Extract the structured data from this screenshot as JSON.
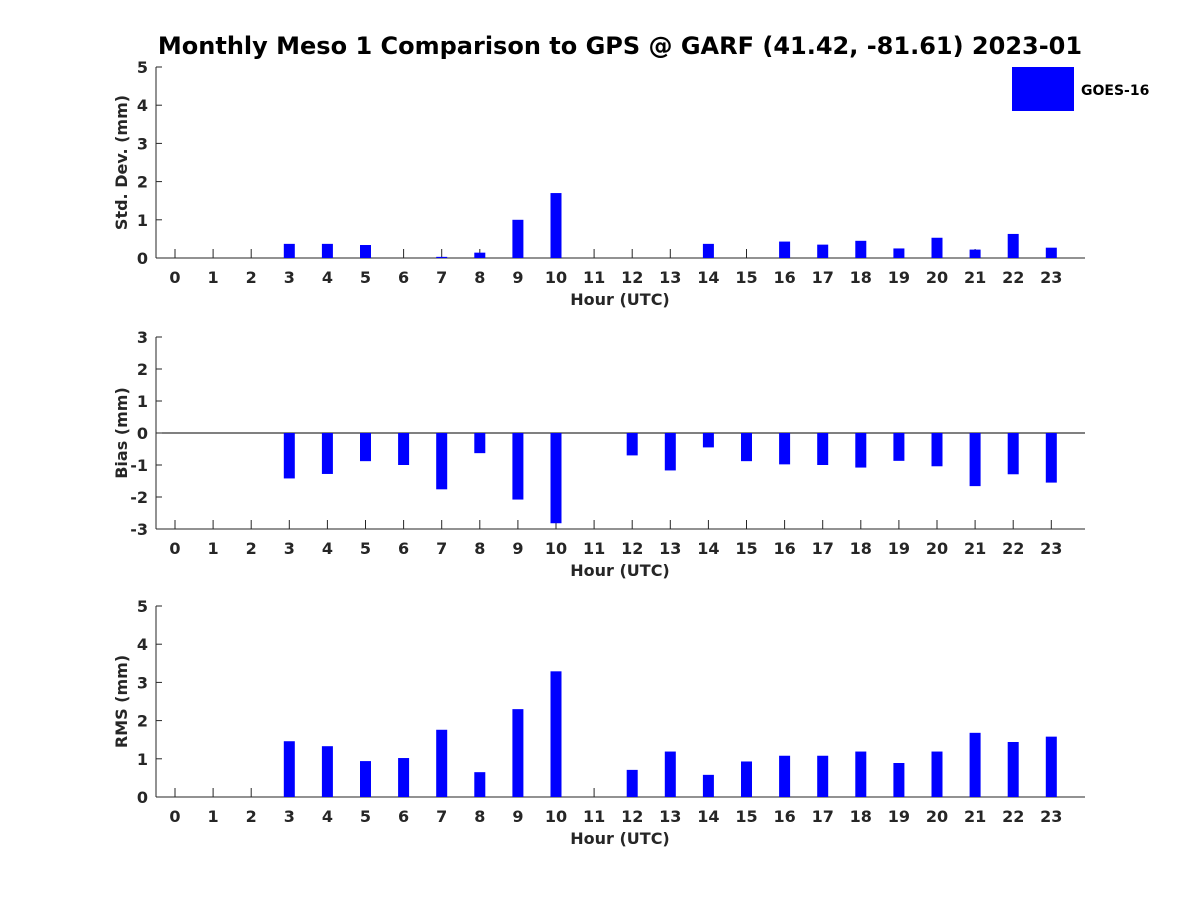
{
  "page": {
    "title": "Monthly Meso 1 Comparison to GPS @ GARF (41.42, -81.61) 2023-01"
  },
  "legend": {
    "label": "GOES-16",
    "color": "#0000ff",
    "placement": "top-right"
  },
  "chart_data": [
    {
      "type": "bar",
      "title": "Monthly Meso 1 Comparison to GPS @ GARF (41.42, -81.61) 2023-01",
      "xlabel": "Hour (UTC)",
      "ylabel": "Std. Dev. (mm)",
      "categories": [
        "0",
        "1",
        "2",
        "3",
        "4",
        "5",
        "6",
        "7",
        "8",
        "9",
        "10",
        "11",
        "12",
        "13",
        "14",
        "15",
        "16",
        "17",
        "18",
        "19",
        "20",
        "21",
        "22",
        "23"
      ],
      "series": [
        {
          "name": "GOES-16",
          "color": "#0000ff",
          "values": [
            null,
            null,
            null,
            0.37,
            0.37,
            0.34,
            null,
            0.03,
            0.14,
            1.0,
            1.7,
            null,
            null,
            null,
            0.37,
            null,
            0.43,
            0.35,
            0.45,
            0.25,
            0.53,
            0.22,
            0.63,
            0.27
          ]
        }
      ],
      "ylim": [
        0,
        5
      ],
      "yticks": [
        0,
        1,
        2,
        3,
        4,
        5
      ],
      "grid": false
    },
    {
      "type": "bar",
      "xlabel": "Hour (UTC)",
      "ylabel": "Bias (mm)",
      "categories": [
        "0",
        "1",
        "2",
        "3",
        "4",
        "5",
        "6",
        "7",
        "8",
        "9",
        "10",
        "11",
        "12",
        "13",
        "14",
        "15",
        "16",
        "17",
        "18",
        "19",
        "20",
        "21",
        "22",
        "23"
      ],
      "series": [
        {
          "name": "GOES-16",
          "color": "#0000ff",
          "values": [
            null,
            null,
            null,
            -1.42,
            -1.28,
            -0.88,
            -1.0,
            -1.76,
            -0.63,
            -2.08,
            -2.82,
            null,
            -0.7,
            -1.17,
            -0.45,
            -0.88,
            -0.98,
            -1.0,
            -1.08,
            -0.87,
            -1.04,
            -1.66,
            -1.29,
            -1.55
          ]
        }
      ],
      "ylim": [
        -3,
        3
      ],
      "yticks": [
        -3,
        -2,
        -1,
        0,
        1,
        2,
        3
      ],
      "zero_line": true,
      "grid": false
    },
    {
      "type": "bar",
      "xlabel": "Hour (UTC)",
      "ylabel": "RMS (mm)",
      "categories": [
        "0",
        "1",
        "2",
        "3",
        "4",
        "5",
        "6",
        "7",
        "8",
        "9",
        "10",
        "11",
        "12",
        "13",
        "14",
        "15",
        "16",
        "17",
        "18",
        "19",
        "20",
        "21",
        "22",
        "23"
      ],
      "series": [
        {
          "name": "GOES-16",
          "color": "#0000ff",
          "values": [
            null,
            null,
            null,
            1.46,
            1.33,
            0.94,
            1.02,
            1.76,
            0.65,
            2.3,
            3.29,
            null,
            0.71,
            1.19,
            0.58,
            0.93,
            1.08,
            1.08,
            1.19,
            0.89,
            1.19,
            1.68,
            1.44,
            1.58
          ]
        }
      ],
      "ylim": [
        0,
        5
      ],
      "yticks": [
        0,
        1,
        2,
        3,
        4,
        5
      ],
      "grid": false
    }
  ]
}
